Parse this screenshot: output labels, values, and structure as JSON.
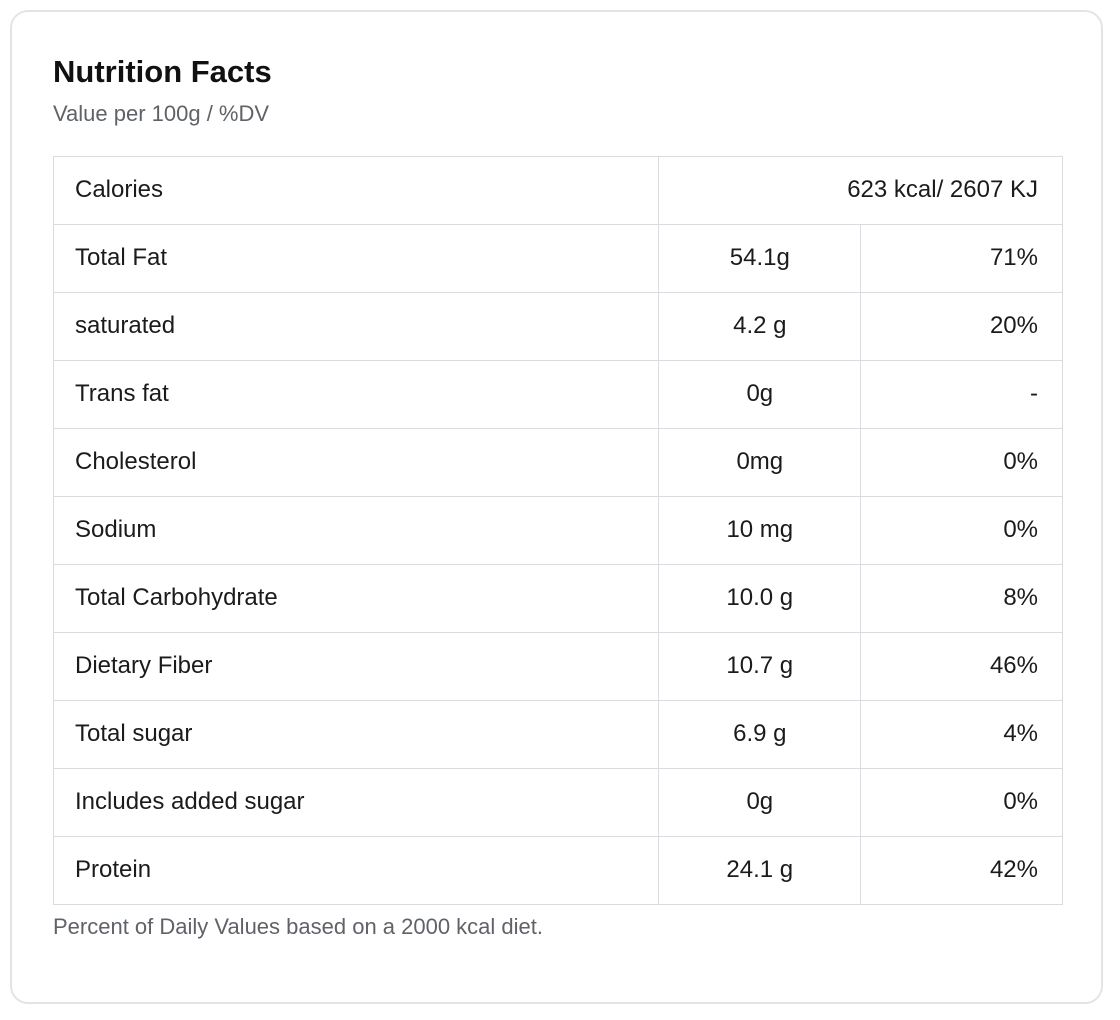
{
  "card": {
    "title": "Nutrition Facts",
    "subtitle": "Value per 100g / %DV",
    "footnote": "Percent of Daily Values based on a 2000 kcal diet."
  },
  "colors": {
    "card_border": "#e4e4e4",
    "table_border": "#dadce0",
    "text": "#1b1b1b",
    "muted_text": "#5f6368",
    "background": "#ffffff"
  },
  "table": {
    "calories_row": {
      "label": "Calories",
      "value": "623 kcal/ 2607 KJ"
    },
    "rows": [
      {
        "label": "Total Fat",
        "value": "54.1g",
        "dv": "71%"
      },
      {
        "label": "saturated",
        "value": "4.2 g",
        "dv": "20%"
      },
      {
        "label": "Trans fat",
        "value": "0g",
        "dv": "-"
      },
      {
        "label": "Cholesterol",
        "value": "0mg",
        "dv": "0%"
      },
      {
        "label": "Sodium",
        "value": "10 mg",
        "dv": "0%"
      },
      {
        "label": "Total Carbohydrate",
        "value": "10.0 g",
        "dv": "8%"
      },
      {
        "label": "Dietary Fiber",
        "value": "10.7 g",
        "dv": "46%"
      },
      {
        "label": "Total sugar",
        "value": "6.9 g",
        "dv": "4%"
      },
      {
        "label": "Includes added sugar",
        "value": "0g",
        "dv": "0%"
      },
      {
        "label": "Protein",
        "value": "24.1 g",
        "dv": "42%"
      }
    ]
  }
}
